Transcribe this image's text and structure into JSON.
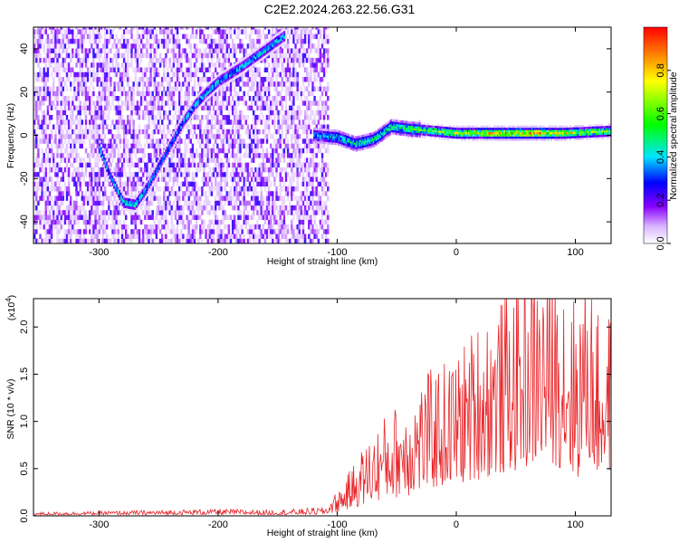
{
  "title": "C2E2.2024.263.22.56.G31",
  "chart_data": [
    {
      "type": "heatmap",
      "xlabel": "Height of straight line (km)",
      "ylabel": "Frequency (Hz)",
      "xlim": [
        -355,
        130
      ],
      "ylim": [
        -50,
        50
      ],
      "x_ticks": [
        -300,
        -200,
        -100,
        0,
        100
      ],
      "y_ticks": [
        -40,
        -20,
        0,
        20,
        40
      ],
      "colorbar": {
        "label": "Normalized spectral amplitude",
        "range": [
          0,
          1
        ],
        "ticks": [
          0.0,
          0.2,
          0.4,
          0.6,
          0.8
        ],
        "colors": [
          "#ffffff",
          "#d9b3ff",
          "#8800ff",
          "#0000ff",
          "#00e5ff",
          "#00ff00",
          "#ffff00",
          "#ff0000"
        ]
      },
      "noise_region_x": [
        -355,
        -108
      ],
      "trace": [
        {
          "x": -300,
          "y": -6,
          "amp": 0.4
        },
        {
          "x": -290,
          "y": -20,
          "amp": 0.4
        },
        {
          "x": -280,
          "y": -31,
          "amp": 0.45
        },
        {
          "x": -270,
          "y": -32,
          "amp": 0.45
        },
        {
          "x": -260,
          "y": -24,
          "amp": 0.4
        },
        {
          "x": -250,
          "y": -14,
          "amp": 0.35
        },
        {
          "x": -240,
          "y": -4,
          "amp": 0.35
        },
        {
          "x": -230,
          "y": 6,
          "amp": 0.4
        },
        {
          "x": -220,
          "y": 14,
          "amp": 0.4
        },
        {
          "x": -210,
          "y": 20,
          "amp": 0.4
        },
        {
          "x": -200,
          "y": 25,
          "amp": 0.4
        },
        {
          "x": -180,
          "y": 32,
          "amp": 0.4
        },
        {
          "x": -160,
          "y": 40,
          "amp": 0.45
        },
        {
          "x": -145,
          "y": 46,
          "amp": 0.4
        }
      ],
      "band": [
        {
          "x": -120,
          "y": 0,
          "amp": 0.35
        },
        {
          "x": -100,
          "y": -1,
          "amp": 0.45
        },
        {
          "x": -85,
          "y": -4,
          "amp": 0.5
        },
        {
          "x": -70,
          "y": -2,
          "amp": 0.5
        },
        {
          "x": -55,
          "y": 4,
          "amp": 0.5
        },
        {
          "x": -40,
          "y": 3,
          "amp": 0.55
        },
        {
          "x": -20,
          "y": 2,
          "amp": 0.6
        },
        {
          "x": 0,
          "y": 1,
          "amp": 0.7
        },
        {
          "x": 30,
          "y": 1,
          "amp": 0.8
        },
        {
          "x": 60,
          "y": 1,
          "amp": 0.9
        },
        {
          "x": 90,
          "y": 1,
          "amp": 0.75
        },
        {
          "x": 130,
          "y": 2,
          "amp": 0.6
        }
      ]
    },
    {
      "type": "line",
      "xlabel": "Height of straight line (km)",
      "ylabel": "SNR (10 * v/v)",
      "yscale_label": "(x10",
      "yscale_exp": "4",
      "yscale_close": ")",
      "xlim": [
        -355,
        130
      ],
      "ylim": [
        0,
        2.3
      ],
      "x_ticks": [
        -300,
        -200,
        -100,
        0,
        100
      ],
      "y_ticks": [
        0.0,
        0.5,
        1.0,
        1.5,
        2.0
      ],
      "y_tick_labels": [
        "0.0",
        "0.5",
        "1.0",
        "1.5",
        "2.0"
      ],
      "color": "#e8262a",
      "series": [
        {
          "x": [
            -355,
            -300,
            -250,
            -200,
            -150,
            -110,
            -95,
            -80,
            -60,
            -40,
            -20,
            0,
            20,
            40,
            60,
            80,
            90,
            100,
            110,
            120,
            130
          ],
          "y": [
            0.02,
            0.03,
            0.03,
            0.04,
            0.03,
            0.04,
            0.15,
            0.3,
            0.5,
            0.6,
            0.8,
            0.9,
            1.1,
            1.25,
            1.45,
            1.55,
            1.4,
            1.0,
            1.6,
            1.1,
            1.3
          ],
          "envelope": [
            0.03,
            0.04,
            0.05,
            0.06,
            0.05,
            0.08,
            0.3,
            0.6,
            0.9,
            1.1,
            1.3,
            1.4,
            1.75,
            1.9,
            2.05,
            2.15,
            2.28,
            1.95,
            2.12,
            1.7,
            1.75
          ]
        }
      ]
    }
  ]
}
